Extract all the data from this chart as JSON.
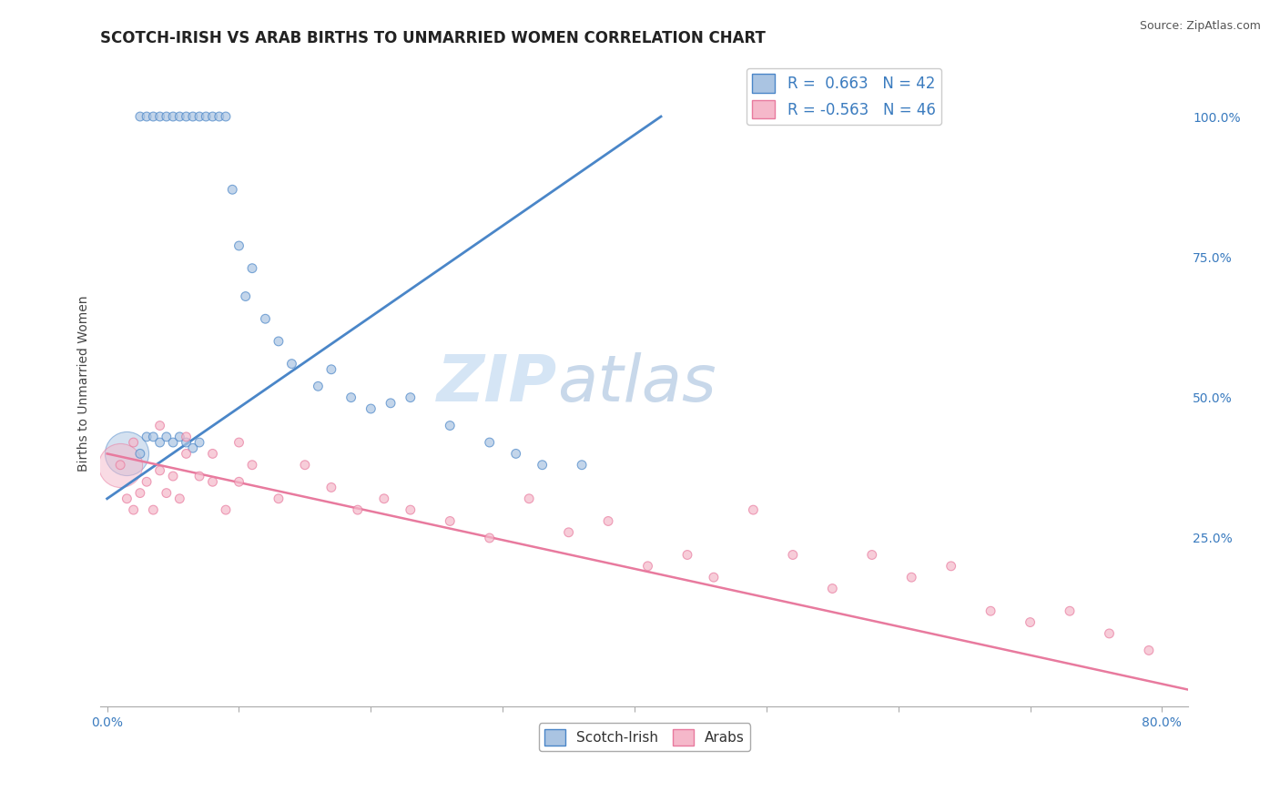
{
  "title": "SCOTCH-IRISH VS ARAB BIRTHS TO UNMARRIED WOMEN CORRELATION CHART",
  "source_text": "Source: ZipAtlas.com",
  "ylabel": "Births to Unmarried Women",
  "watermark_zip": "ZIP",
  "watermark_atlas": "atlas",
  "xlim": [
    -0.005,
    0.82
  ],
  "ylim": [
    -0.05,
    1.1
  ],
  "xticks": [
    0.0,
    0.1,
    0.2,
    0.3,
    0.4,
    0.5,
    0.6,
    0.7,
    0.8
  ],
  "xticklabels": [
    "0.0%",
    "",
    "",
    "",
    "",
    "",
    "",
    "",
    "80.0%"
  ],
  "yticks_right": [
    0.25,
    0.5,
    0.75,
    1.0
  ],
  "ytick_labels_right": [
    "25.0%",
    "50.0%",
    "75.0%",
    "100.0%"
  ],
  "scotch_irish_color": "#aac4e2",
  "arab_color": "#f5b8ca",
  "scotch_irish_line_color": "#4a86c8",
  "arab_line_color": "#e87a9e",
  "legend_R_scotch": "0.663",
  "legend_N_scotch": "42",
  "legend_R_arab": "-0.563",
  "legend_N_arab": "46",
  "scotch_irish_x": [
    0.025,
    0.03,
    0.035,
    0.04,
    0.045,
    0.05,
    0.055,
    0.06,
    0.065,
    0.07,
    0.075,
    0.08,
    0.085,
    0.09,
    0.095,
    0.1,
    0.105,
    0.11,
    0.12,
    0.13,
    0.14,
    0.16,
    0.17,
    0.185,
    0.2,
    0.215,
    0.23,
    0.26,
    0.29,
    0.31,
    0.33,
    0.36,
    0.025,
    0.03,
    0.035,
    0.04,
    0.045,
    0.05,
    0.055,
    0.06,
    0.065,
    0.07
  ],
  "scotch_irish_y": [
    1.0,
    1.0,
    1.0,
    1.0,
    1.0,
    1.0,
    1.0,
    1.0,
    1.0,
    1.0,
    1.0,
    1.0,
    1.0,
    1.0,
    0.87,
    0.77,
    0.68,
    0.73,
    0.64,
    0.6,
    0.56,
    0.52,
    0.55,
    0.5,
    0.48,
    0.49,
    0.5,
    0.45,
    0.42,
    0.4,
    0.38,
    0.38,
    0.4,
    0.43,
    0.43,
    0.42,
    0.43,
    0.42,
    0.43,
    0.42,
    0.41,
    0.42
  ],
  "scotch_irish_size": [
    50,
    50,
    50,
    50,
    50,
    50,
    50,
    50,
    50,
    50,
    50,
    50,
    50,
    50,
    50,
    50,
    50,
    50,
    50,
    50,
    50,
    50,
    50,
    50,
    50,
    50,
    50,
    50,
    50,
    50,
    50,
    50,
    50,
    50,
    50,
    50,
    50,
    50,
    50,
    50,
    50,
    50
  ],
  "scotch_irish_large_x": [
    0.015
  ],
  "scotch_irish_large_y": [
    0.4
  ],
  "scotch_irish_large_size": [
    1200
  ],
  "arab_x": [
    0.01,
    0.015,
    0.02,
    0.025,
    0.03,
    0.035,
    0.04,
    0.045,
    0.05,
    0.055,
    0.06,
    0.07,
    0.08,
    0.09,
    0.1,
    0.11,
    0.13,
    0.15,
    0.17,
    0.19,
    0.21,
    0.23,
    0.26,
    0.29,
    0.32,
    0.35,
    0.38,
    0.41,
    0.44,
    0.46,
    0.49,
    0.52,
    0.55,
    0.58,
    0.61,
    0.64,
    0.67,
    0.7,
    0.73,
    0.76,
    0.79,
    0.02,
    0.04,
    0.06,
    0.08,
    0.1
  ],
  "arab_y": [
    0.38,
    0.32,
    0.3,
    0.33,
    0.35,
    0.3,
    0.37,
    0.33,
    0.36,
    0.32,
    0.4,
    0.36,
    0.35,
    0.3,
    0.35,
    0.38,
    0.32,
    0.38,
    0.34,
    0.3,
    0.32,
    0.3,
    0.28,
    0.25,
    0.32,
    0.26,
    0.28,
    0.2,
    0.22,
    0.18,
    0.3,
    0.22,
    0.16,
    0.22,
    0.18,
    0.2,
    0.12,
    0.1,
    0.12,
    0.08,
    0.05,
    0.42,
    0.45,
    0.43,
    0.4,
    0.42
  ],
  "arab_size": [
    50,
    50,
    50,
    50,
    50,
    50,
    50,
    50,
    50,
    50,
    50,
    50,
    50,
    50,
    50,
    50,
    50,
    50,
    50,
    50,
    50,
    50,
    50,
    50,
    50,
    50,
    50,
    50,
    50,
    50,
    50,
    50,
    50,
    50,
    50,
    50,
    50,
    50,
    50,
    50,
    50,
    50,
    50,
    50,
    50,
    50
  ],
  "arab_large_x": [
    0.01
  ],
  "arab_large_y": [
    0.38
  ],
  "arab_large_size": [
    1200
  ],
  "title_fontsize": 12,
  "axis_label_fontsize": 10,
  "tick_fontsize": 10,
  "legend_fontsize": 12,
  "watermark_fontsize_zip": 52,
  "watermark_fontsize_atlas": 52,
  "watermark_color": "#d5e5f5",
  "background_color": "#ffffff",
  "grid_color": "#cccccc",
  "blue_line_x0": 0.0,
  "blue_line_y0": 0.32,
  "blue_line_x1": 0.42,
  "blue_line_y1": 1.0,
  "pink_line_x0": 0.0,
  "pink_line_y0": 0.4,
  "pink_line_x1": 0.82,
  "pink_line_y1": -0.02
}
